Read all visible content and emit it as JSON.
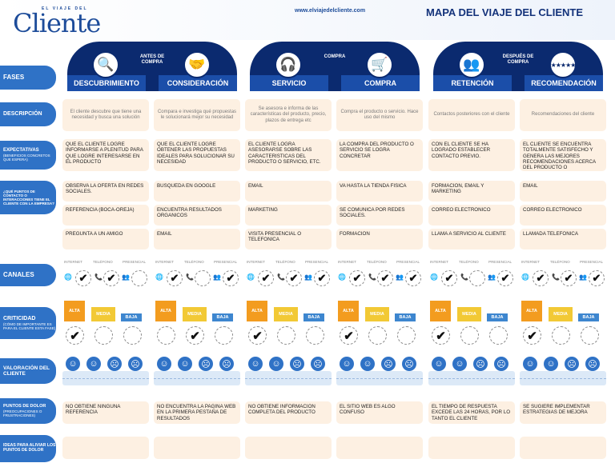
{
  "header": {
    "logo_small": "EL VIAJE DEL",
    "logo_big": "Cliente",
    "url": "www.elviajedelcliente.com",
    "title": "MAPA DEL VIAJE DEL CLIENTE"
  },
  "colors": {
    "navy": "#0b2a6f",
    "blue": "#2f72c6",
    "cell_bg": "#fdf0e2",
    "alta": "#f39c1f",
    "media": "#f2c935",
    "baja": "#3d86cf"
  },
  "between": [
    "ANTES DE COMPRA",
    "COMPRA",
    "DESPUÉS DE COMPRA"
  ],
  "row_labels": {
    "fases": "FASES",
    "descripcion": "DESCRIPCIÓN",
    "expectativas": "EXPECTATIVAS",
    "expectativas_sub": "(BENEFICIOS CONCRETOS QUE ESPERA)",
    "puntos_contacto": "¿QUÉ PUNTOS DE CONTACTO O INTERACCIONES TIENE EL CLIENTE CON LA EMPRESA?",
    "canales": "CANALES",
    "criticidad": "CRITICIDAD",
    "criticidad_sub": "(CÓMO DE IMPORTANTE ES PARA EL CLIENTE ESTA FASE)",
    "valoracion": "VALORACIÓN DEL CLIENTE",
    "dolor": "PUNTOS DE DOLOR",
    "dolor_sub": "(PREOCUPACIONES O FRUSTRACIONES)",
    "ideas": "IDEAS PARA ALIVIAR LOS PUNTOS DE DOLOR"
  },
  "channel_headers": [
    "INTERNET",
    "TELÉFONO",
    "PRESENCIAL"
  ],
  "criticidad_labels": [
    "ALTA",
    "MEDIA",
    "BAJA"
  ],
  "check": "✔",
  "phases": [
    {
      "name": "DESCUBRIMIENTO",
      "icon": "magnifier-icon",
      "glyph": "🔍",
      "description": "El cliente descubre que tiene una necesidad y busca una solución",
      "expectations": "QUE EL CLIENTE LOGRE INFORMARSE A PLENITUD PARA QUE LOGRE INTERESARSE EN EL PRODUCTO",
      "touchpoints": [
        "OBSERVA LA OFERTA EN REDES SOCIALES.",
        "REFERENCIA (BOCA-OREJA)",
        "PREGUNTA A UN AMIGO"
      ],
      "channels": [
        true,
        true,
        false
      ],
      "criticidad": 0,
      "pain": "NO OBTIENE NINGUNA REFERENCIA",
      "idea": ""
    },
    {
      "name": "CONSIDERACIÓN",
      "icon": "handshake-icon",
      "glyph": "🤝",
      "description": "Compara e investiga qué propuestas le solucionará mejor su necesidad",
      "expectations": "QUE EL CLIENTE LOGRE OBTENER LAS PROPUESTAS IDEALES PARA SOLUCIONAR SU NECESIDAD",
      "touchpoints": [
        "BUSQUEDA EN GOOGLE",
        "ENCUENTRA RESULTADOS ORGANICOS",
        "EMAIL"
      ],
      "channels": [
        true,
        false,
        true
      ],
      "criticidad": 1,
      "pain": "NO ENCUENTRA LA PAGINA WEB EN LA PRIMERA PESTAÑA DE RESULTADOS",
      "idea": ""
    },
    {
      "name": "SERVICIO",
      "icon": "headset-icon",
      "glyph": "🎧",
      "description": "Se asesora e informa de las características del producto, precio, plazos de entrega etc",
      "expectations": "EL CLIENTE LOGRA ASESORARSE SOBRE LAS CARACTERISTICAS DEL PRODUCTO O SERVICIO, ETC.",
      "touchpoints": [
        "EMAIL",
        "MARKETING",
        "VISITA PRESENCIAL O TELEFONICA"
      ],
      "channels": [
        true,
        true,
        true
      ],
      "criticidad": 0,
      "pain": "NO OBTIENE INFORMACION COMPLETA  DEL PRODUCTO",
      "idea": ""
    },
    {
      "name": "COMPRA",
      "icon": "cart-icon",
      "glyph": "🛒",
      "description": "Compra el producto o servicio. Hace uso del mismo",
      "expectations": "LA COMPRA  DEL PRODUCTO O SERVICIO SE LOGRA CONCRETAR",
      "touchpoints": [
        "VA HASTA LA TIENDA FISICA",
        "SE COMUNICA POR REDES SOCIALES.",
        "FORMACION"
      ],
      "channels": [
        true,
        true,
        true
      ],
      "criticidad": 0,
      "pain": "EL SITIO WEB ES ALGO CONFUSO",
      "idea": ""
    },
    {
      "name": "RETENCIÓN",
      "icon": "users-icon",
      "glyph": "👥",
      "description": "Contactos posteriores con el cliente",
      "expectations": "CON EL CLIENTE SE HA LOGRADO ESTABLECER CONTACTO PREVIO.",
      "touchpoints": [
        "FORMACION, EMAIL Y MARKETING",
        "CORREO ELECTRONICO",
        "LLAMA A SERVICIO AL CLIENTE"
      ],
      "channels": [
        true,
        false,
        true
      ],
      "criticidad": 0,
      "pain": "EL TIEMPO DE RESPUESTA EXCEDE LAS 24 HORAS, POR LO TANTO EL CLIENTE",
      "idea": ""
    },
    {
      "name": "RECOMENDACIÓN",
      "icon": "stars-icon",
      "glyph": "★★★★★",
      "description": "Recomendaciones del cliente",
      "expectations": "EL CLIENTE SE ENCUENTRA TOTALMENTE SATISFECHO Y GENERA LAS MEJORES RECOMENDACIONES ACERCA DEL PRODUCTO O",
      "touchpoints": [
        "EMAIL",
        "CORREO ELECTRONICO",
        "LLAMADA TELEFONICA"
      ],
      "channels": [
        true,
        true,
        true
      ],
      "criticidad": 0,
      "pain": "SE SUGIERE IMPLEMENTAR ESTRATEGIAS DE MEJORA",
      "idea": ""
    }
  ],
  "faces": [
    "☺",
    "☺",
    "☹",
    "☹"
  ],
  "channel_glyphs": [
    "🌐",
    "📞",
    "👥"
  ]
}
